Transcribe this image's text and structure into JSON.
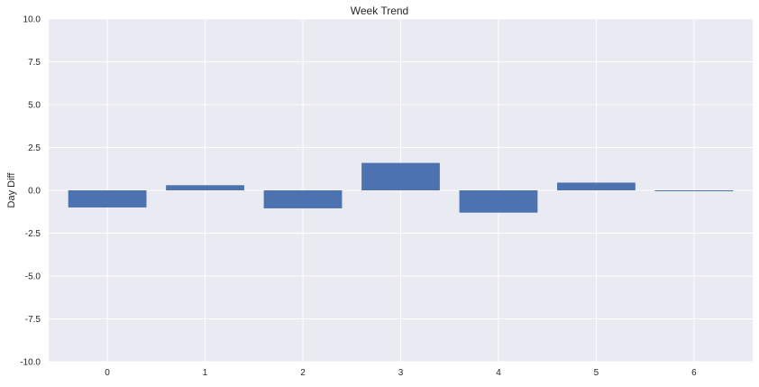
{
  "chart_data": {
    "type": "bar",
    "title": "Week Trend",
    "xlabel": "",
    "ylabel": "Day Diff",
    "categories": [
      "0",
      "1",
      "2",
      "3",
      "4",
      "5",
      "6"
    ],
    "values": [
      -1.0,
      0.3,
      -1.05,
      1.6,
      -1.3,
      0.45,
      -0.05
    ],
    "ylim": [
      -10,
      10
    ],
    "yticks": [
      "10.0",
      "7.5",
      "5.0",
      "2.5",
      "0.0",
      "-2.5",
      "-5.0",
      "-7.5",
      "-10.0"
    ],
    "ytick_values": [
      10,
      7.5,
      5,
      2.5,
      0,
      -2.5,
      -5,
      -7.5,
      -10
    ],
    "grid": true,
    "colors": {
      "bar": "#4c72b0",
      "background": "#eaeaf2",
      "grid": "#ffffff",
      "text": "#262626"
    }
  }
}
